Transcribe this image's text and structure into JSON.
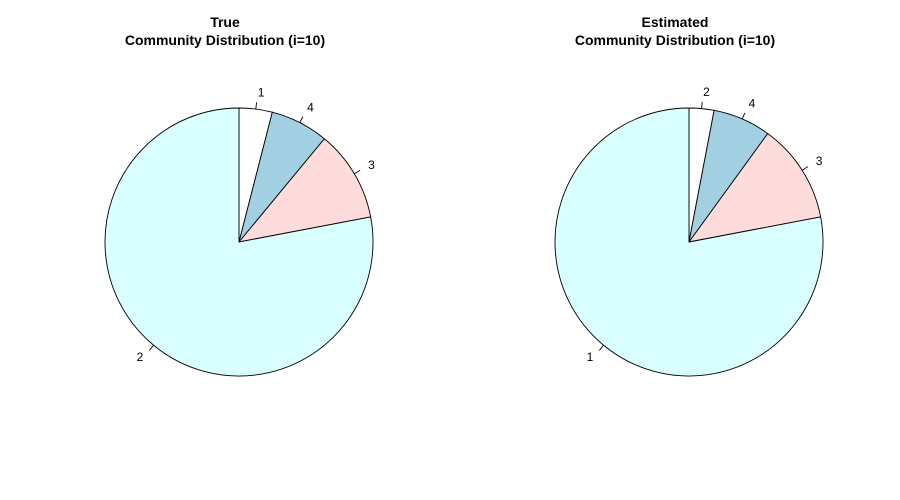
{
  "chart_data": [
    {
      "type": "pie",
      "title": [
        "True",
        "Community Distribution (i=10)"
      ],
      "slices": [
        {
          "label": "1",
          "value": 4,
          "color": "#ffffff"
        },
        {
          "label": "4",
          "value": 7,
          "color": "#a2cfe1"
        },
        {
          "label": "3",
          "value": 11,
          "color": "#ffdcdc"
        },
        {
          "label": "2",
          "value": 78,
          "color": "#d9ffff"
        }
      ]
    },
    {
      "type": "pie",
      "title": [
        "Estimated",
        "Community Distribution (i=10)"
      ],
      "slices": [
        {
          "label": "2",
          "value": 3,
          "color": "#ffffff"
        },
        {
          "label": "4",
          "value": 7,
          "color": "#a2cfe1"
        },
        {
          "label": "3",
          "value": 12,
          "color": "#ffdcdc"
        },
        {
          "label": "1",
          "value": 78,
          "color": "#d9ffff"
        }
      ]
    }
  ]
}
